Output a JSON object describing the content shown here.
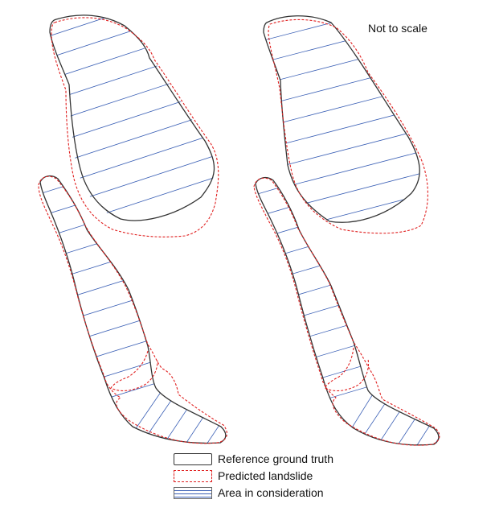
{
  "note": "Not to scale",
  "legend": {
    "ground_truth": "Reference ground truth",
    "predicted": "Predicted landslide",
    "area": "Area in consideration"
  },
  "colors": {
    "ground_truth": "#333333",
    "predicted": "#e02020",
    "hatch": "#3a5fb5"
  }
}
